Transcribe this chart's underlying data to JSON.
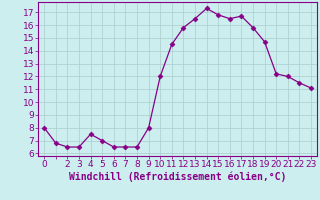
{
  "x": [
    0,
    1,
    2,
    3,
    4,
    5,
    6,
    7,
    8,
    9,
    10,
    11,
    12,
    13,
    14,
    15,
    16,
    17,
    18,
    19,
    20,
    21,
    22,
    23
  ],
  "y": [
    8.0,
    6.8,
    6.5,
    6.5,
    7.5,
    7.0,
    6.5,
    6.5,
    6.5,
    8.0,
    12.0,
    14.5,
    15.8,
    16.5,
    17.3,
    16.8,
    16.5,
    16.7,
    15.8,
    14.7,
    12.2,
    12.0,
    11.5,
    11.1
  ],
  "line_color": "#880088",
  "marker": "D",
  "marker_size": 2.5,
  "bg_color": "#cceeee",
  "grid_color": "#aacccc",
  "xlabel": "Windchill (Refroidissement éolien,°C)",
  "xlabel_color": "#880088",
  "xlabel_fontsize": 7,
  "ylabel_ticks": [
    6,
    7,
    8,
    9,
    10,
    11,
    12,
    13,
    14,
    15,
    16,
    17
  ],
  "xtick_labels": [
    "0",
    "",
    "2",
    "3",
    "4",
    "5",
    "6",
    "7",
    "8",
    "9",
    "10",
    "11",
    "12",
    "13",
    "14",
    "15",
    "16",
    "17",
    "18",
    "19",
    "20",
    "21",
    "22",
    "23"
  ],
  "ylim": [
    5.8,
    17.8
  ],
  "xlim": [
    -0.5,
    23.5
  ],
  "tick_fontsize": 6.5,
  "tick_color": "#880088",
  "axis_color": "#880088"
}
